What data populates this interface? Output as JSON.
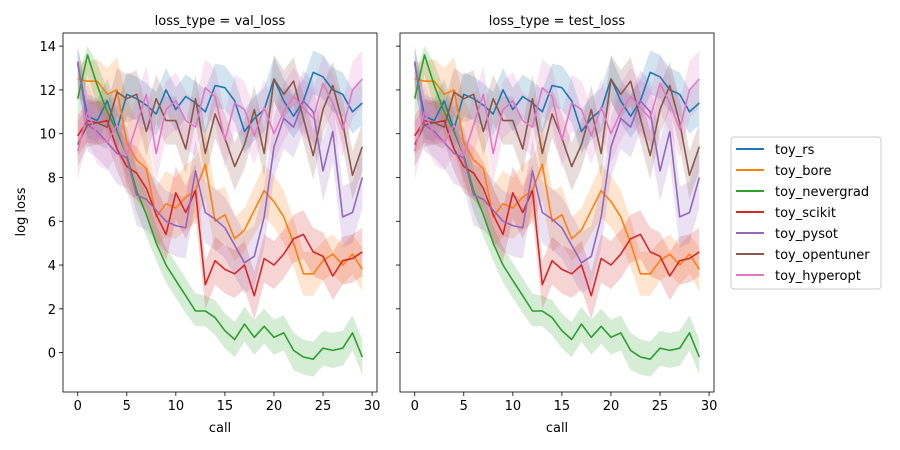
{
  "chart_data": {
    "type": "line",
    "ylabel": "log loss",
    "xlabel": "call",
    "xlim": [
      -1.5,
      30.5
    ],
    "ylim": [
      -1.8,
      14.6
    ],
    "xticks": [
      0,
      5,
      10,
      15,
      20,
      25,
      30
    ],
    "yticks": [
      0,
      2,
      4,
      6,
      8,
      10,
      12,
      14
    ],
    "legend_position": "right",
    "panels": [
      {
        "title": "loss_type = val_loss"
      },
      {
        "title": "loss_type = test_loss"
      }
    ],
    "series": [
      {
        "name": "toy_rs",
        "color": "#1f77b4",
        "values": [
          13.2,
          10.8,
          10.6,
          11.5,
          10.2,
          11.8,
          11.6,
          11.3,
          10.9,
          12.0,
          11.1,
          11.7,
          11.4,
          11.0,
          12.2,
          12.1,
          11.5,
          10.1,
          10.7,
          11.1,
          12.5,
          11.5,
          10.8,
          11.5,
          12.8,
          12.6,
          12.0,
          11.8,
          11.0,
          11.4
        ],
        "lower": [
          12.2,
          9.8,
          9.6,
          10.5,
          9.2,
          10.8,
          10.6,
          10.3,
          9.9,
          11.0,
          10.1,
          10.7,
          10.4,
          10.0,
          11.2,
          11.1,
          10.5,
          9.1,
          9.7,
          10.1,
          11.5,
          10.5,
          9.8,
          10.5,
          11.8,
          11.6,
          11.0,
          10.8,
          10.0,
          10.4
        ],
        "upper": [
          14.0,
          11.8,
          11.6,
          12.5,
          11.2,
          12.8,
          12.6,
          12.3,
          11.9,
          13.0,
          12.1,
          12.7,
          12.4,
          12.0,
          13.2,
          13.1,
          12.5,
          11.1,
          11.7,
          12.1,
          13.5,
          12.5,
          11.8,
          12.5,
          13.8,
          13.6,
          13.0,
          12.8,
          12.0,
          12.4
        ]
      },
      {
        "name": "toy_bore",
        "color": "#ff7f0e",
        "values": [
          12.5,
          12.4,
          12.4,
          11.8,
          12.0,
          9.6,
          8.8,
          8.4,
          6.2,
          6.8,
          6.6,
          7.1,
          7.4,
          8.6,
          6.0,
          6.3,
          5.2,
          5.6,
          6.5,
          7.4,
          6.9,
          6.2,
          5.0,
          3.6,
          3.6,
          4.2,
          4.5,
          4.0,
          4.5,
          3.8
        ],
        "lower": [
          11.6,
          11.4,
          11.3,
          10.6,
          10.4,
          7.6,
          7.0,
          6.6,
          4.8,
          5.3,
          5.2,
          5.6,
          5.9,
          7.0,
          4.6,
          5.0,
          4.2,
          4.6,
          5.4,
          6.2,
          5.7,
          5.0,
          3.9,
          2.6,
          2.6,
          3.3,
          3.6,
          3.1,
          3.6,
          2.8
        ],
        "upper": [
          13.3,
          13.3,
          13.4,
          13.0,
          13.5,
          11.6,
          10.6,
          10.2,
          7.6,
          8.3,
          8.0,
          8.6,
          8.9,
          10.2,
          7.4,
          7.6,
          6.2,
          6.6,
          7.6,
          8.6,
          8.1,
          7.4,
          6.1,
          4.6,
          4.6,
          5.1,
          5.4,
          4.9,
          5.4,
          4.8
        ]
      },
      {
        "name": "toy_nevergrad",
        "color": "#2ca02c",
        "values": [
          11.6,
          13.6,
          12.2,
          11.0,
          10.1,
          9.0,
          7.4,
          6.3,
          5.0,
          4.0,
          3.3,
          2.6,
          1.9,
          1.9,
          1.6,
          1.0,
          0.6,
          1.3,
          0.7,
          1.2,
          0.7,
          0.9,
          0.1,
          -0.2,
          -0.3,
          0.2,
          0.1,
          0.2,
          0.9,
          -0.2
        ],
        "lower": [
          10.4,
          12.7,
          11.2,
          10.0,
          9.2,
          8.0,
          6.4,
          5.3,
          4.2,
          3.2,
          2.5,
          1.8,
          1.2,
          1.2,
          0.8,
          0.2,
          -0.2,
          0.5,
          -0.1,
          0.4,
          -0.1,
          0.1,
          -0.8,
          -1.0,
          -1.1,
          -0.6,
          -0.7,
          -0.6,
          0.1,
          -1.0
        ],
        "upper": [
          12.6,
          14.0,
          13.2,
          12.0,
          11.0,
          10.0,
          8.4,
          7.3,
          5.8,
          4.8,
          4.1,
          3.4,
          2.7,
          2.6,
          2.4,
          1.8,
          1.4,
          2.1,
          1.5,
          2.0,
          1.5,
          1.7,
          0.9,
          0.6,
          0.5,
          1.0,
          0.9,
          1.0,
          1.7,
          0.6
        ]
      },
      {
        "name": "toy_scikit",
        "color": "#d62728",
        "values": [
          9.9,
          10.6,
          10.5,
          10.6,
          9.3,
          8.5,
          8.2,
          7.5,
          6.3,
          5.4,
          7.3,
          6.4,
          7.4,
          3.1,
          4.2,
          3.8,
          3.6,
          4.0,
          2.6,
          4.3,
          4.0,
          4.5,
          5.2,
          5.4,
          4.6,
          4.4,
          3.5,
          4.2,
          4.3,
          4.6
        ],
        "lower": [
          9.0,
          9.6,
          9.5,
          9.6,
          8.3,
          7.3,
          7.0,
          6.3,
          5.1,
          4.2,
          6.1,
          5.2,
          6.2,
          2.0,
          3.1,
          2.7,
          2.5,
          2.9,
          1.5,
          3.2,
          2.9,
          3.4,
          4.1,
          4.3,
          3.5,
          3.3,
          2.4,
          3.1,
          3.2,
          3.5
        ],
        "upper": [
          10.8,
          11.6,
          11.5,
          11.6,
          10.3,
          9.7,
          9.4,
          8.7,
          7.5,
          6.6,
          8.5,
          7.6,
          8.6,
          4.2,
          5.3,
          4.9,
          4.7,
          5.1,
          3.7,
          5.4,
          5.1,
          5.6,
          6.3,
          6.5,
          5.7,
          5.5,
          4.6,
          5.3,
          5.4,
          5.7
        ]
      },
      {
        "name": "toy_pysot",
        "color": "#9467bd",
        "values": [
          13.3,
          10.4,
          10.1,
          9.6,
          9.1,
          8.9,
          7.2,
          7.0,
          6.5,
          6.0,
          5.8,
          5.7,
          8.3,
          6.4,
          6.1,
          5.7,
          4.9,
          4.1,
          4.4,
          6.2,
          9.4,
          10.7,
          10.3,
          11.5,
          11.0,
          8.3,
          10.1,
          6.2,
          6.4,
          8.0
        ],
        "lower": [
          12.3,
          9.2,
          8.9,
          8.4,
          7.7,
          7.5,
          5.8,
          5.6,
          5.1,
          4.6,
          4.4,
          4.3,
          6.9,
          5.0,
          4.7,
          4.3,
          3.5,
          2.7,
          3.0,
          4.8,
          8.0,
          9.3,
          8.9,
          10.1,
          9.6,
          6.9,
          8.7,
          4.8,
          5.0,
          6.6
        ],
        "upper": [
          14.0,
          11.6,
          11.3,
          10.8,
          10.5,
          10.3,
          8.6,
          8.4,
          7.9,
          7.4,
          7.2,
          7.1,
          9.7,
          7.8,
          7.5,
          7.1,
          6.3,
          5.5,
          5.8,
          7.6,
          10.8,
          12.1,
          11.7,
          12.9,
          12.4,
          9.7,
          11.5,
          7.6,
          7.8,
          9.4
        ]
      },
      {
        "name": "toy_opentuner",
        "color": "#8c564b",
        "values": [
          9.5,
          10.4,
          10.5,
          10.3,
          11.9,
          11.6,
          11.8,
          10.1,
          11.6,
          10.6,
          10.6,
          9.3,
          11.6,
          9.1,
          10.9,
          9.8,
          8.5,
          9.5,
          11.1,
          9.1,
          12.5,
          11.8,
          12.4,
          10.7,
          9.0,
          11.1,
          12.2,
          10.5,
          8.1,
          9.4
        ],
        "lower": [
          8.5,
          9.4,
          9.5,
          9.3,
          10.8,
          10.5,
          10.7,
          9.0,
          10.5,
          9.5,
          9.5,
          8.2,
          10.5,
          8.0,
          9.8,
          8.7,
          7.4,
          8.4,
          10.0,
          8.0,
          11.4,
          10.7,
          11.3,
          9.6,
          7.9,
          10.0,
          11.1,
          9.4,
          7.0,
          8.3
        ],
        "upper": [
          10.5,
          11.4,
          11.5,
          11.3,
          13.0,
          12.7,
          12.9,
          11.2,
          12.7,
          11.7,
          11.7,
          10.4,
          12.7,
          10.2,
          12.0,
          10.9,
          9.6,
          10.6,
          12.2,
          10.2,
          13.6,
          12.9,
          13.5,
          11.8,
          10.1,
          12.2,
          13.3,
          11.6,
          9.2,
          10.5
        ]
      },
      {
        "name": "toy_hyperopt",
        "color": "#e377c2",
        "values": [
          9.2,
          11.0,
          9.9,
          9.6,
          10.4,
          9.0,
          10.4,
          11.8,
          9.1,
          11.1,
          11.5,
          10.6,
          10.3,
          12.1,
          11.7,
          9.7,
          11.4,
          11.1,
          9.9,
          11.2,
          10.0,
          11.0,
          11.7,
          11.2,
          10.7,
          12.3,
          11.4,
          10.2,
          12.0,
          12.5
        ],
        "lower": [
          7.9,
          9.7,
          8.6,
          8.3,
          9.1,
          7.7,
          9.1,
          10.5,
          7.8,
          9.8,
          10.2,
          9.3,
          9.0,
          10.8,
          10.4,
          8.4,
          10.1,
          9.8,
          8.6,
          9.9,
          8.7,
          9.7,
          10.4,
          9.9,
          9.4,
          11.0,
          10.1,
          8.9,
          10.7,
          11.2
        ],
        "upper": [
          10.5,
          12.3,
          11.2,
          10.9,
          11.7,
          10.3,
          11.7,
          13.1,
          10.4,
          12.4,
          12.8,
          11.9,
          11.6,
          13.4,
          13.0,
          11.0,
          12.7,
          12.4,
          11.2,
          12.5,
          11.3,
          12.3,
          13.0,
          12.5,
          12.0,
          13.6,
          12.7,
          11.5,
          13.3,
          13.8
        ]
      }
    ]
  }
}
